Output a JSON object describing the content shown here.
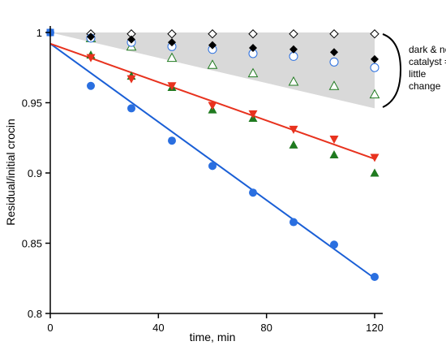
{
  "chart_data": {
    "type": "scatter",
    "title": "",
    "xlabel": "time, min",
    "ylabel": "Residual/initial crocin",
    "xlim": [
      0,
      120
    ],
    "ylim": [
      0.8,
      1.0
    ],
    "x_ticks": [
      0,
      40,
      80,
      120
    ],
    "y_ticks": [
      0.8,
      0.85,
      0.9,
      0.95,
      1
    ],
    "y_tick_labels": [
      "0.8",
      "0.85",
      "0.9",
      "0.95",
      "1"
    ],
    "grid": false,
    "legend": "none",
    "annotation": {
      "lines": [
        "dark  & no",
        "catalyst =",
        "little",
        "change"
      ],
      "shaded_region": {
        "x": [
          0,
          120
        ],
        "upper": [
          1.0,
          1.0
        ],
        "lower": [
          1.0,
          0.946
        ],
        "color": "#d9d9d9"
      }
    },
    "series": [
      {
        "marker": "circle-filled",
        "color": "#2a6fe0",
        "x": [
          0,
          15,
          30,
          45,
          60,
          75,
          90,
          105,
          120
        ],
        "y": [
          1.0,
          0.962,
          0.946,
          0.923,
          0.905,
          0.886,
          0.865,
          0.849,
          0.826
        ]
      },
      {
        "marker": "triangle-down-filled",
        "color": "#e8321e",
        "x": [
          15,
          30,
          45,
          60,
          75,
          90,
          105,
          120
        ],
        "y": [
          0.982,
          0.967,
          0.962,
          0.948,
          0.942,
          0.931,
          0.924,
          0.911
        ]
      },
      {
        "marker": "triangle-up-filled",
        "color": "#1f7a1f",
        "x": [
          15,
          30,
          45,
          60,
          75,
          90,
          105,
          120
        ],
        "y": [
          0.984,
          0.969,
          0.961,
          0.945,
          0.939,
          0.92,
          0.913,
          0.9
        ]
      },
      {
        "marker": "diamond-open",
        "color": "#000000",
        "x": [
          15,
          30,
          45,
          60,
          75,
          90,
          105,
          120
        ],
        "y": [
          0.999,
          0.999,
          0.999,
          0.999,
          0.999,
          0.999,
          0.999,
          0.999
        ]
      },
      {
        "marker": "diamond-filled",
        "color": "#000000",
        "x": [
          15,
          30,
          45,
          60,
          75,
          90,
          105,
          120
        ],
        "y": [
          0.997,
          0.995,
          0.993,
          0.991,
          0.989,
          0.988,
          0.986,
          0.981
        ]
      },
      {
        "marker": "circle-open",
        "color": "#2a6fe0",
        "x": [
          15,
          30,
          45,
          60,
          75,
          90,
          105,
          120
        ],
        "y": [
          0.996,
          0.993,
          0.99,
          0.988,
          0.985,
          0.983,
          0.979,
          0.975
        ]
      },
      {
        "marker": "triangle-up-open",
        "color": "#1f7a1f",
        "x": [
          15,
          30,
          45,
          60,
          75,
          90,
          105,
          120
        ],
        "y": [
          0.996,
          0.99,
          0.982,
          0.977,
          0.971,
          0.965,
          0.962,
          0.956
        ]
      }
    ],
    "fit_lines": [
      {
        "color": "#1a5fd6",
        "x": [
          0,
          120
        ],
        "y": [
          0.992,
          0.825
        ]
      },
      {
        "color": "#e8321e",
        "x": [
          0,
          120
        ],
        "y": [
          0.992,
          0.91
        ]
      }
    ]
  }
}
